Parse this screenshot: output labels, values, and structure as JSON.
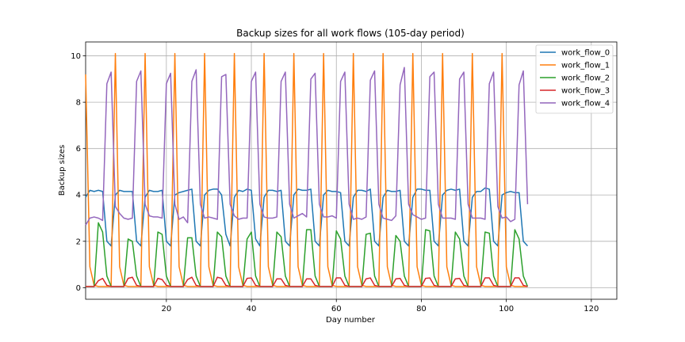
{
  "chart_data": {
    "type": "line",
    "title": "Backup sizes for all work flows (105-day period)",
    "xlabel": "Day number",
    "ylabel": "Backup sizes",
    "xlim": [
      1,
      126
    ],
    "ylim": [
      -0.5,
      10.6
    ],
    "xticks": [
      20,
      40,
      60,
      80,
      100,
      120
    ],
    "yticks": [
      0,
      2,
      4,
      6,
      8,
      10
    ],
    "grid": true,
    "legend_position": "top-right",
    "x": [
      1,
      2,
      3,
      4,
      5,
      6,
      7,
      8,
      9,
      10,
      11,
      12,
      13,
      14,
      15,
      16,
      17,
      18,
      19,
      20,
      21,
      22,
      23,
      24,
      25,
      26,
      27,
      28,
      29,
      30,
      31,
      32,
      33,
      34,
      35,
      36,
      37,
      38,
      39,
      40,
      41,
      42,
      43,
      44,
      45,
      46,
      47,
      48,
      49,
      50,
      51,
      52,
      53,
      54,
      55,
      56,
      57,
      58,
      59,
      60,
      61,
      62,
      63,
      64,
      65,
      66,
      67,
      68,
      69,
      70,
      71,
      72,
      73,
      74,
      75,
      76,
      77,
      78,
      79,
      80,
      81,
      82,
      83,
      84,
      85,
      86,
      87,
      88,
      89,
      90,
      91,
      92,
      93,
      94,
      95,
      96,
      97,
      98,
      99,
      100,
      101,
      102,
      103,
      104,
      105
    ],
    "series": [
      {
        "name": "work_flow_0",
        "color": "#1f77b4",
        "values": [
          3.9,
          4.2,
          4.15,
          4.2,
          4.15,
          2.0,
          1.8,
          4.0,
          4.2,
          4.15,
          4.15,
          4.15,
          2.0,
          1.8,
          3.9,
          4.2,
          4.15,
          4.15,
          4.2,
          2.0,
          1.8,
          4.0,
          4.1,
          4.15,
          4.2,
          4.25,
          2.0,
          1.8,
          4.0,
          4.2,
          4.25,
          4.25,
          4.0,
          2.3,
          1.8,
          3.9,
          4.2,
          4.15,
          4.25,
          4.2,
          2.1,
          1.8,
          3.9,
          4.2,
          4.2,
          4.15,
          4.2,
          2.0,
          1.8,
          4.0,
          4.25,
          4.2,
          4.2,
          4.25,
          2.0,
          1.8,
          4.0,
          4.2,
          4.15,
          4.15,
          4.1,
          2.0,
          1.8,
          3.9,
          4.2,
          4.2,
          4.15,
          4.25,
          2.0,
          1.8,
          3.9,
          4.2,
          4.15,
          4.15,
          4.2,
          2.0,
          1.8,
          3.9,
          4.25,
          4.25,
          4.2,
          4.2,
          2.0,
          1.8,
          4.0,
          4.2,
          4.25,
          4.2,
          4.25,
          2.0,
          1.8,
          3.9,
          4.15,
          4.15,
          4.3,
          4.25,
          2.0,
          1.8,
          4.0,
          4.1,
          4.15,
          4.1,
          4.1,
          2.0,
          1.8
        ]
      },
      {
        "name": "work_flow_1",
        "color": "#ff7f0e",
        "values": [
          9.2,
          0.9,
          0.1,
          0.05,
          0.05,
          0.05,
          0.05,
          10.1,
          0.9,
          0.1,
          0.05,
          0.05,
          0.05,
          0.05,
          10.1,
          0.9,
          0.1,
          0.05,
          0.05,
          0.05,
          0.05,
          10.1,
          0.9,
          0.1,
          0.05,
          0.05,
          0.05,
          0.05,
          10.1,
          0.9,
          0.1,
          0.05,
          0.05,
          0.05,
          0.05,
          10.1,
          0.9,
          0.1,
          0.05,
          0.05,
          0.05,
          0.05,
          10.1,
          0.9,
          0.1,
          0.05,
          0.05,
          0.05,
          0.05,
          10.1,
          0.9,
          0.1,
          0.05,
          0.05,
          0.05,
          0.05,
          10.1,
          0.9,
          0.1,
          0.05,
          0.05,
          0.05,
          0.05,
          10.1,
          0.9,
          0.1,
          0.05,
          0.05,
          0.05,
          0.05,
          10.1,
          0.9,
          0.1,
          0.05,
          0.05,
          0.05,
          0.05,
          10.1,
          0.9,
          0.1,
          0.05,
          0.05,
          0.05,
          0.05,
          10.1,
          0.9,
          0.1,
          0.05,
          0.05,
          0.05,
          0.05,
          10.1,
          0.9,
          0.1,
          0.05,
          0.05,
          0.05,
          0.05,
          10.1,
          0.9,
          0.1,
          0.05,
          0.05,
          0.05,
          0.05
        ]
      },
      {
        "name": "work_flow_2",
        "color": "#2ca02c",
        "values": [
          0.05,
          0.05,
          0.05,
          2.8,
          2.4,
          0.5,
          0.05,
          0.05,
          0.05,
          0.05,
          2.1,
          2.0,
          0.5,
          0.05,
          0.05,
          0.05,
          0.05,
          2.4,
          2.3,
          0.5,
          0.05,
          0.05,
          0.05,
          0.05,
          2.15,
          2.15,
          0.5,
          0.05,
          0.05,
          0.05,
          0.05,
          2.4,
          2.2,
          0.5,
          0.05,
          0.05,
          0.05,
          0.05,
          2.1,
          2.4,
          0.5,
          0.05,
          0.05,
          0.05,
          0.05,
          2.4,
          2.2,
          0.5,
          0.05,
          0.05,
          0.05,
          0.05,
          2.5,
          2.5,
          0.5,
          0.05,
          0.05,
          0.05,
          0.05,
          2.45,
          2.1,
          0.5,
          0.05,
          0.05,
          0.05,
          0.05,
          2.3,
          2.35,
          0.5,
          0.05,
          0.05,
          0.05,
          0.05,
          2.25,
          2.0,
          0.5,
          0.05,
          0.05,
          0.05,
          0.05,
          2.5,
          2.45,
          0.5,
          0.05,
          0.05,
          0.05,
          0.05,
          2.4,
          2.1,
          0.5,
          0.05,
          0.05,
          0.05,
          0.05,
          2.4,
          2.35,
          0.5,
          0.05,
          0.05,
          0.05,
          0.05,
          2.5,
          2.1,
          0.5,
          0.05
        ]
      },
      {
        "name": "work_flow_3",
        "color": "#d62728",
        "values": [
          0.05,
          0.05,
          0.05,
          0.3,
          0.4,
          0.1,
          0.05,
          0.05,
          0.05,
          0.05,
          0.4,
          0.45,
          0.1,
          0.05,
          0.05,
          0.05,
          0.05,
          0.4,
          0.35,
          0.1,
          0.05,
          0.05,
          0.05,
          0.05,
          0.35,
          0.45,
          0.1,
          0.05,
          0.05,
          0.05,
          0.05,
          0.45,
          0.4,
          0.1,
          0.05,
          0.05,
          0.05,
          0.05,
          0.4,
          0.42,
          0.1,
          0.05,
          0.05,
          0.05,
          0.05,
          0.38,
          0.38,
          0.1,
          0.05,
          0.05,
          0.05,
          0.05,
          0.38,
          0.38,
          0.1,
          0.05,
          0.05,
          0.05,
          0.05,
          0.42,
          0.42,
          0.1,
          0.05,
          0.05,
          0.05,
          0.05,
          0.38,
          0.42,
          0.1,
          0.05,
          0.05,
          0.05,
          0.05,
          0.38,
          0.4,
          0.1,
          0.05,
          0.05,
          0.05,
          0.05,
          0.4,
          0.42,
          0.1,
          0.05,
          0.05,
          0.05,
          0.05,
          0.38,
          0.4,
          0.1,
          0.05,
          0.05,
          0.05,
          0.05,
          0.42,
          0.42,
          0.1,
          0.05,
          0.05,
          0.05,
          0.05,
          0.42,
          0.42,
          0.1,
          0.05
        ]
      },
      {
        "name": "work_flow_4",
        "color": "#9467bd",
        "values": [
          2.7,
          3.0,
          3.05,
          3.0,
          2.9,
          8.8,
          9.3,
          3.5,
          3.2,
          3.0,
          2.95,
          3.0,
          8.9,
          9.35,
          3.6,
          3.1,
          3.05,
          3.05,
          3.0,
          8.8,
          9.25,
          3.6,
          2.95,
          3.05,
          2.8,
          8.9,
          9.4,
          3.6,
          3.0,
          3.05,
          3.0,
          2.95,
          9.1,
          9.2,
          3.6,
          3.1,
          2.95,
          3.0,
          3.0,
          8.9,
          9.3,
          3.6,
          3.05,
          3.0,
          3.0,
          3.05,
          8.9,
          9.3,
          3.6,
          3.0,
          3.1,
          3.2,
          3.05,
          9.0,
          9.25,
          3.6,
          3.05,
          3.05,
          3.1,
          3.0,
          8.9,
          9.3,
          3.6,
          2.95,
          3.0,
          2.95,
          3.05,
          8.95,
          9.35,
          3.6,
          3.0,
          2.95,
          2.9,
          3.1,
          8.75,
          9.5,
          3.6,
          3.15,
          3.05,
          2.95,
          3.0,
          9.1,
          9.3,
          3.6,
          3.0,
          3.0,
          3.0,
          2.95,
          9.0,
          9.3,
          3.6,
          3.0,
          3.0,
          3.0,
          2.95,
          8.8,
          9.3,
          3.5,
          3.0,
          3.05,
          2.85,
          2.95,
          8.75,
          9.35,
          3.6
        ]
      }
    ]
  }
}
